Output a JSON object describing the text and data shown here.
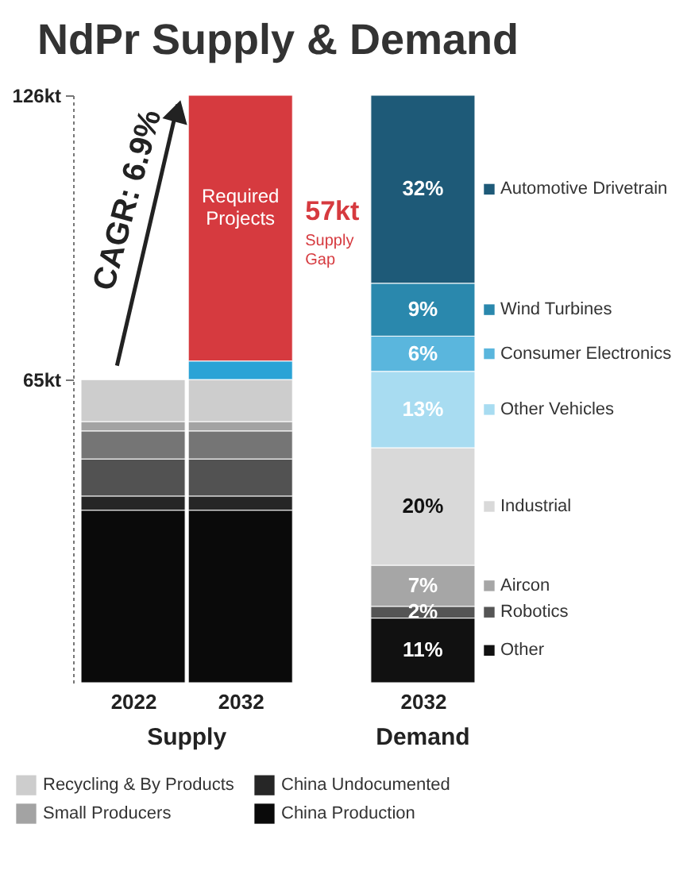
{
  "chart_data": {
    "type": "bar",
    "title": "NdPr Supply & Demand",
    "stacked": true,
    "categories": [
      "2022",
      "2032",
      "2032"
    ],
    "ylim": [
      0,
      126
    ],
    "legend": "bottom",
    "series": [
      {
        "name": "China Production",
        "color": "#0a0a0a",
        "values": [
          37,
          37,
          null
        ]
      },
      {
        "name": "China Undocumented",
        "color": "#262626",
        "values": [
          3,
          3,
          null
        ]
      },
      {
        "color": "#525252",
        "values": [
          8,
          8,
          null
        ]
      },
      {
        "color": "#757575",
        "values": [
          6,
          6,
          null
        ]
      },
      {
        "name": "Small Producers",
        "color": "#a3a3a3",
        "values": [
          2,
          2,
          null
        ]
      },
      {
        "name": "Recycling & By Products",
        "color": "#cdcdcd",
        "values": [
          9,
          9,
          null
        ]
      },
      {
        "color": "#2aa3d6",
        "values": [
          null,
          4,
          null
        ]
      },
      {
        "name": "Required Projects",
        "color": "#d63a3f",
        "values": [
          null,
          57,
          null
        ]
      },
      {
        "name": "Other",
        "color": "#111111",
        "axis": "y2",
        "values": [
          null,
          null,
          11
        ],
        "value_labels": [
          null,
          null,
          "11%"
        ]
      },
      {
        "name": "Robotics",
        "color": "#555555",
        "axis": "y2",
        "values": [
          null,
          null,
          2
        ],
        "value_labels": [
          null,
          null,
          "2%"
        ]
      },
      {
        "name": "Aircon",
        "color": "#a6a6a6",
        "axis": "y2",
        "values": [
          null,
          null,
          7
        ],
        "value_labels": [
          null,
          null,
          "7%"
        ]
      },
      {
        "name": "Industrial",
        "color": "#d9d9d9",
        "axis": "y2",
        "values": [
          null,
          null,
          20
        ],
        "value_labels": [
          null,
          null,
          "20%"
        ]
      },
      {
        "name": "Other Vehicles",
        "color": "#a8dcf1",
        "axis": "y2",
        "values": [
          null,
          null,
          13
        ],
        "value_labels": [
          null,
          null,
          "13%"
        ]
      },
      {
        "name": "Consumer Electronics",
        "color": "#5ab6dd",
        "axis": "y2",
        "values": [
          null,
          null,
          6
        ],
        "value_labels": [
          null,
          null,
          "6%"
        ]
      },
      {
        "name": "Wind Turbines",
        "color": "#2a88ad",
        "axis": "y2",
        "values": [
          null,
          null,
          9
        ],
        "value_labels": [
          null,
          null,
          "9%"
        ]
      },
      {
        "name": "Automotive Drivetrain",
        "color": "#1e5a78",
        "axis": "y2",
        "values": [
          null,
          null,
          32
        ],
        "value_labels": [
          null,
          null,
          "32%"
        ]
      }
    ],
    "y2lim": [
      0,
      100
    ],
    "yticks": [
      {
        "value": 65,
        "label": "65kt"
      },
      {
        "value": 126,
        "label": "126kt"
      }
    ],
    "annotations": [
      "CAGR: 6.9%",
      "57kt",
      "Supply Gap",
      "Supply",
      "Demand"
    ]
  }
}
